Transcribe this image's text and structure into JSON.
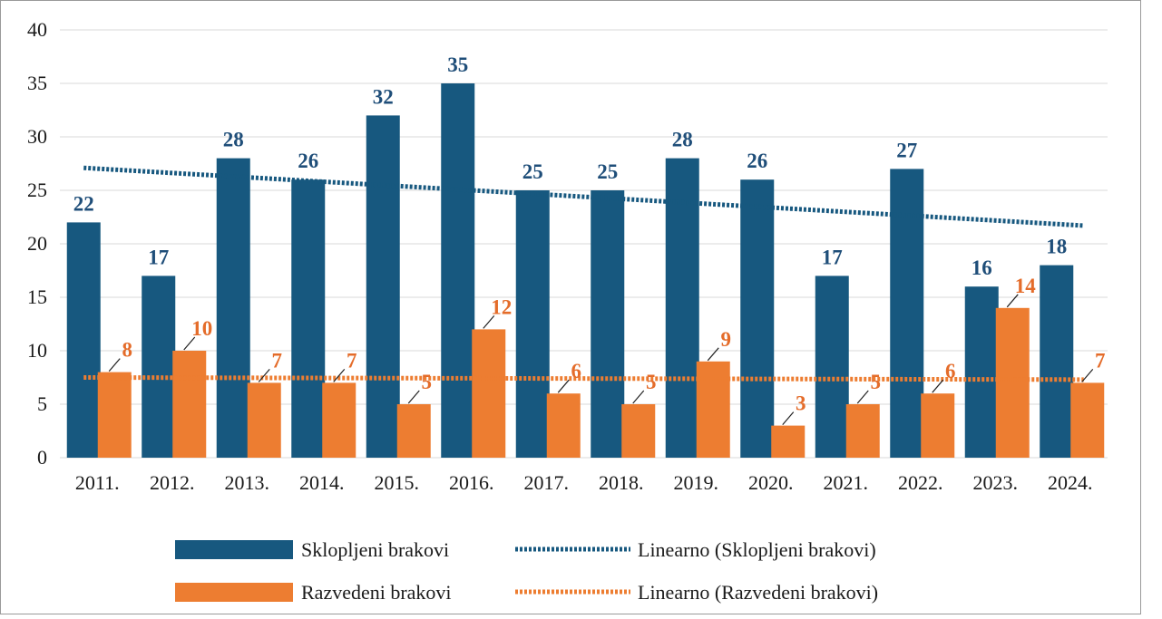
{
  "chart_data": {
    "type": "bar",
    "categories": [
      "2011.",
      "2012.",
      "2013.",
      "2014.",
      "2015.",
      "2016.",
      "2017.",
      "2018.",
      "2019.",
      "2020.",
      "2021.",
      "2022.",
      "2023.",
      "2024."
    ],
    "series": [
      {
        "name": "Sklopljeni brakovi",
        "color": "#17587f",
        "values": [
          22,
          17,
          28,
          26,
          32,
          35,
          25,
          25,
          28,
          26,
          17,
          27,
          16,
          18
        ]
      },
      {
        "name": "Razvedeni brakovi",
        "color": "#ed7d31",
        "values": [
          8,
          10,
          7,
          7,
          5,
          12,
          6,
          5,
          9,
          3,
          5,
          6,
          14,
          7
        ]
      }
    ],
    "trendlines": [
      {
        "name": "Linearno (Sklopljeni brakovi)",
        "color": "#17587f",
        "start": 27.1,
        "end": 21.7
      },
      {
        "name": "Linearno (Razvedeni brakovi)",
        "color": "#ed7d31",
        "start": 7.5,
        "end": 7.3
      }
    ],
    "yticks": [
      "0",
      "5",
      "10",
      "15",
      "20",
      "25",
      "30",
      "35",
      "40"
    ],
    "ylim": [
      0,
      40
    ],
    "title": "",
    "xlabel": "",
    "ylabel": "",
    "legend_position": "bottom",
    "grid": true
  }
}
